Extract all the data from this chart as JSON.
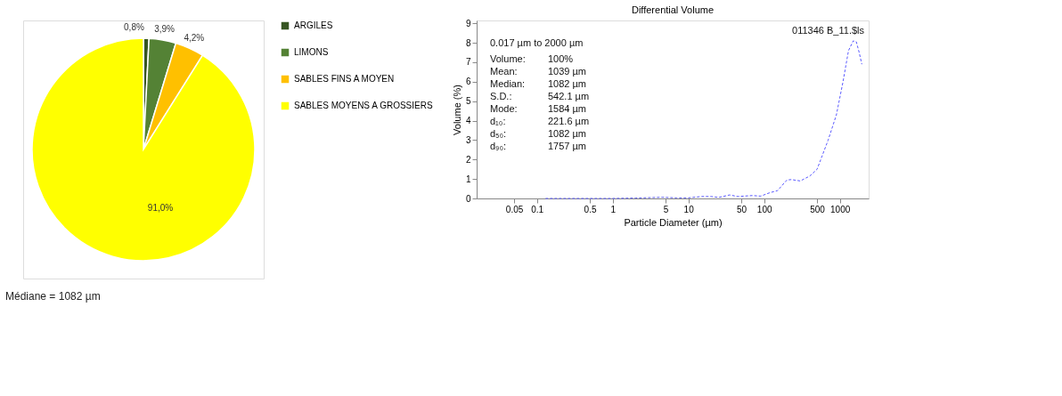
{
  "chart_data": [
    {
      "type": "pie",
      "categories": [
        "ARGILES",
        "LIMONS",
        "SABLES FINS A MOYEN",
        "SABLES  MOYENS A GROSSIERS"
      ],
      "values": [
        0.8,
        3.9,
        4.2,
        91.0
      ],
      "colors": [
        "#375623",
        "#548235",
        "#ffc000",
        "#ffff00"
      ],
      "value_labels": [
        "0,8%",
        "3,9%",
        "4,2%",
        "91,0%"
      ],
      "legend": "right",
      "annotations": [
        "Médiane = 1082 µm"
      ]
    },
    {
      "type": "line",
      "title": "Differential Volume",
      "xlabel": "Particle Diameter (µm)",
      "ylabel": "Volume (%)",
      "log": "x",
      "xlim": [
        0.016,
        2400
      ],
      "ylim": [
        0,
        9.15
      ],
      "xticks": [
        0.05,
        0.1,
        0.5,
        1,
        5,
        10,
        50,
        100,
        500,
        1000
      ],
      "yticks": [
        0,
        1,
        2,
        3,
        4,
        5,
        6,
        7,
        8,
        9
      ],
      "grid": false,
      "line_style": "dashed",
      "marker": "none",
      "series": [
        {
          "color": "#5a5aff",
          "x": [
            0.13,
            0.5,
            1,
            2,
            4.5,
            7,
            10,
            15,
            20,
            25,
            35,
            45,
            70,
            90,
            120,
            150,
            200,
            230,
            300,
            400,
            500,
            700,
            900,
            1100,
            1300,
            1500,
            1650,
            1800,
            1950
          ],
          "values": [
            0,
            0,
            0,
            0.02,
            0.06,
            0.03,
            0.03,
            0.1,
            0.1,
            0.05,
            0.18,
            0.1,
            0.15,
            0.12,
            0.3,
            0.4,
            0.95,
            0.97,
            0.9,
            1.15,
            1.5,
            3,
            4.3,
            6,
            7.6,
            8.1,
            8.05,
            7.5,
            6.9
          ]
        }
      ],
      "annotations": [
        "011346 B_11.$ls",
        "0.017 µm to 2000 µm",
        "Volume:",
        "100%",
        "Mean:",
        "1039 µm",
        "Median:",
        "1082 µm",
        "S.D.:",
        "542.1 µm",
        "Mode:",
        "1584 µm",
        "d₁₀:",
        "221.6 µm",
        "d₅₀:",
        "1082 µm",
        "d₉₀:",
        "1757 µm"
      ]
    }
  ]
}
